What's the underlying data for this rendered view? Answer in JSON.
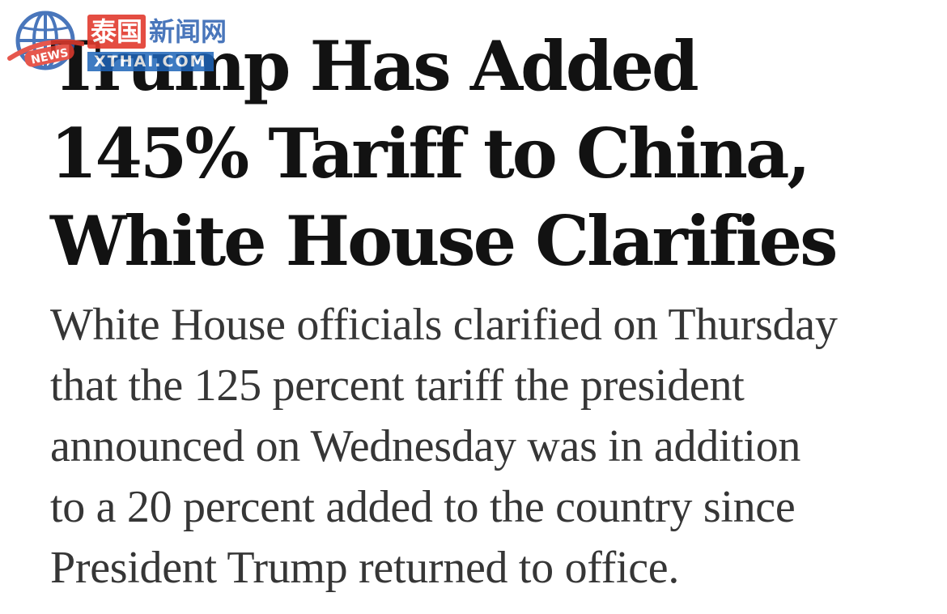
{
  "article": {
    "headline_lines": [
      "Trump Has Added",
      "145% Tariff to China,",
      "White House Clarifies"
    ],
    "summary_lines": [
      "White House officials clarified on Thursday",
      "that the 125 percent tariff the president",
      "announced on Wednesday was in addition",
      "to a 20 percent added to the country since",
      "President Trump returned to office."
    ]
  },
  "watermark": {
    "cn_red": "泰国",
    "cn_blue": "新闻网",
    "url": "XTHAI.COM",
    "badge": "NEWS",
    "colors": {
      "red": "#e23a2e",
      "blue": "#1d64b8"
    }
  }
}
